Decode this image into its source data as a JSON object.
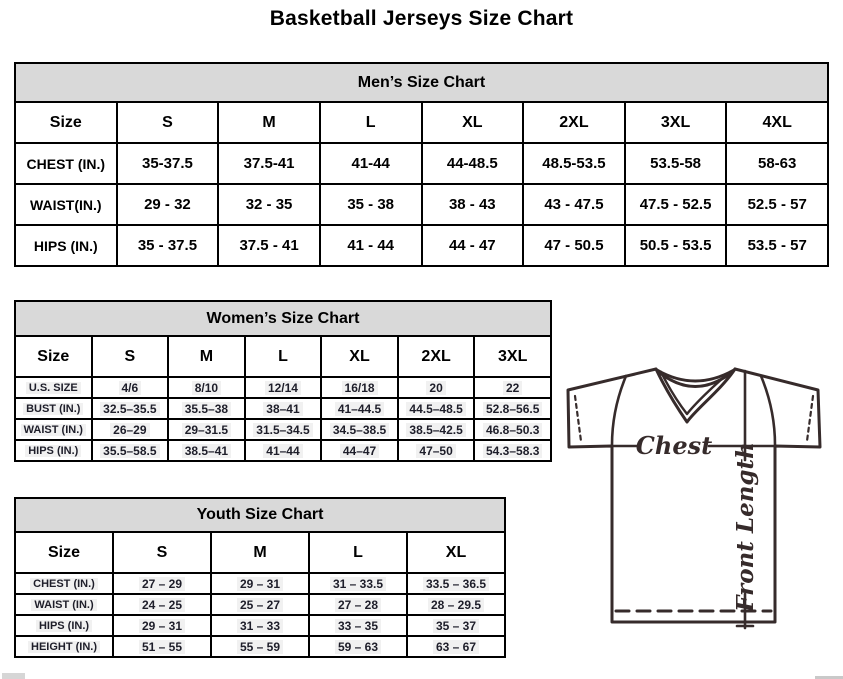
{
  "page": {
    "title": "Basketball Jerseys Size Chart"
  },
  "tables": {
    "men": {
      "title": "Men’s Size Chart",
      "columns": [
        "Size",
        "S",
        "M",
        "L",
        "XL",
        "2XL",
        "3XL",
        "4XL"
      ],
      "rows": [
        {
          "label": "CHEST (IN.)",
          "values": [
            "35-37.5",
            "37.5-41",
            "41-44",
            "44-48.5",
            "48.5-53.5",
            "53.5-58",
            "58-63"
          ]
        },
        {
          "label": "WAIST(IN.)",
          "values": [
            "29 - 32",
            "32 - 35",
            "35 - 38",
            "38 - 43",
            "43 - 47.5",
            "47.5 - 52.5",
            "52.5 - 57"
          ]
        },
        {
          "label": "HIPS (IN.)",
          "values": [
            "35 - 37.5",
            "37.5 - 41",
            "41 - 44",
            "44 - 47",
            "47 - 50.5",
            "50.5 - 53.5",
            "53.5 - 57"
          ]
        }
      ]
    },
    "women": {
      "title": "Women’s Size Chart",
      "columns": [
        "Size",
        "S",
        "M",
        "L",
        "XL",
        "2XL",
        "3XL"
      ],
      "rows": [
        {
          "label": "U.S. SIZE",
          "values": [
            "4/6",
            "8/10",
            "12/14",
            "16/18",
            "20",
            "22"
          ]
        },
        {
          "label": "BUST (IN.)",
          "values": [
            "32.5–35.5",
            "35.5–38",
            "38–41",
            "41–44.5",
            "44.5–48.5",
            "52.8–56.5"
          ]
        },
        {
          "label": "WAIST (IN.)",
          "values": [
            "26–29",
            "29–31.5",
            "31.5–34.5",
            "34.5–38.5",
            "38.5–42.5",
            "46.8–50.3"
          ]
        },
        {
          "label": "HIPS (IN.)",
          "values": [
            "35.5–58.5",
            "38.5–41",
            "41–44",
            "44–47",
            "47–50",
            "54.3–58.3"
          ]
        }
      ]
    },
    "youth": {
      "title": "Youth Size Chart",
      "columns": [
        "Size",
        "S",
        "M",
        "L",
        "XL"
      ],
      "rows": [
        {
          "label": "CHEST (IN.)",
          "values": [
            "27 – 29",
            "29 – 31",
            "31 – 33.5",
            "33.5 – 36.5"
          ]
        },
        {
          "label": "WAIST (IN.)",
          "values": [
            "24 – 25",
            "25 – 27",
            "27 – 28",
            "28 – 29.5"
          ]
        },
        {
          "label": "HIPS (IN.)",
          "values": [
            "29 – 31",
            "31 – 33",
            "33 – 35",
            "35 – 37"
          ]
        },
        {
          "label": "HEIGHT (IN.)",
          "values": [
            "51 – 55",
            "55 – 59",
            "59 – 63",
            "63 – 67"
          ]
        }
      ]
    }
  },
  "diagram": {
    "chest_label": "Chest",
    "front_length_label": "Front Length"
  },
  "colors": {
    "header_bg": "#d9d9d9",
    "table_border": "#000000",
    "data_text": "#1e1e2a",
    "cell_highlight": "#f1f1f1",
    "diagram_line": "#362b2b"
  }
}
